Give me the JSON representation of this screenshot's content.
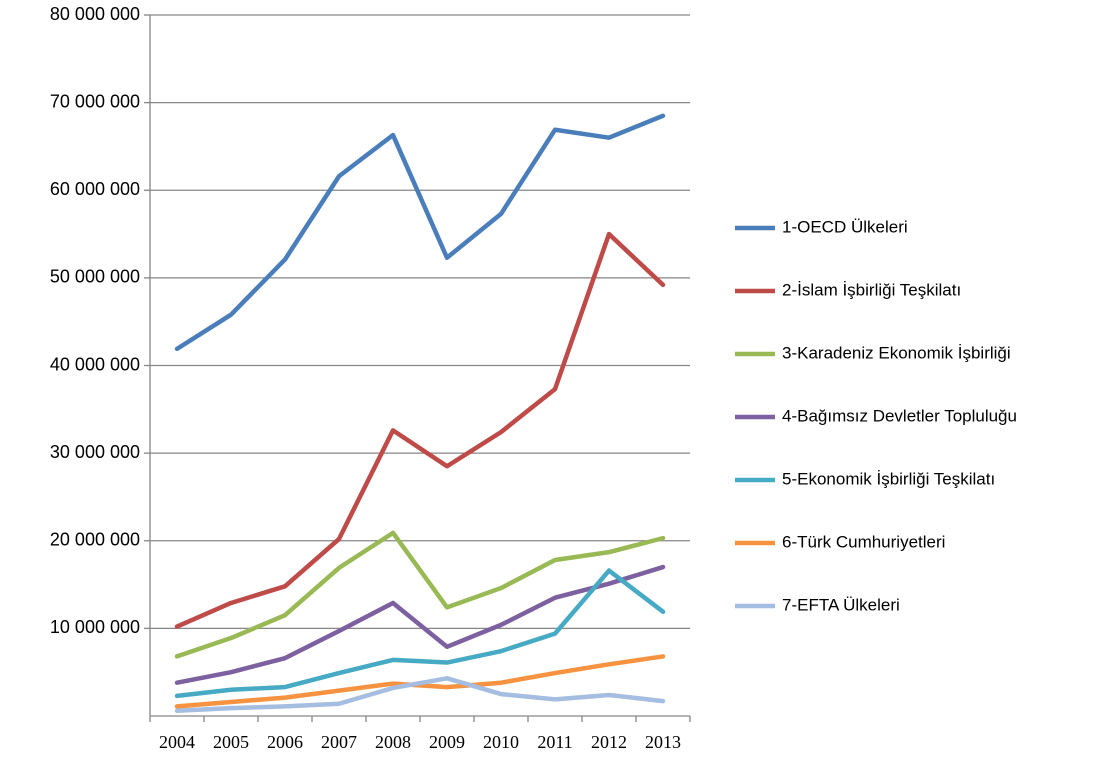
{
  "chart_data": {
    "type": "line",
    "categories": [
      "2004",
      "2005",
      "2006",
      "2007",
      "2008",
      "2009",
      "2010",
      "2011",
      "2012",
      "2013"
    ],
    "ylim": [
      0,
      80000000
    ],
    "yticks": [
      {
        "value": 10000000,
        "label": "10 000 000"
      },
      {
        "value": 20000000,
        "label": "20 000 000"
      },
      {
        "value": 30000000,
        "label": "30 000 000"
      },
      {
        "value": 40000000,
        "label": "40 000 000"
      },
      {
        "value": 50000000,
        "label": "50 000 000"
      },
      {
        "value": 60000000,
        "label": "60 000 000"
      },
      {
        "value": 70000000,
        "label": "70 000 000"
      },
      {
        "value": 80000000,
        "label": "80 000 000"
      }
    ],
    "grid": true,
    "legend": "right",
    "series": [
      {
        "name": "1-OECD Ülkeleri",
        "color": "#4a7ebb",
        "values": [
          41900000,
          45800000,
          52100000,
          61600000,
          66300000,
          52300000,
          57300000,
          66900000,
          66000000,
          68500000
        ]
      },
      {
        "name": "2-İslam İşbirliği Teşkilatı",
        "color": "#be4b48",
        "values": [
          10200000,
          12900000,
          14800000,
          20200000,
          32600000,
          28500000,
          32400000,
          37300000,
          55000000,
          49200000
        ]
      },
      {
        "name": "3-Karadeniz Ekonomik  İşbirliği",
        "color": "#98b954",
        "values": [
          6800000,
          8900000,
          11500000,
          16900000,
          20900000,
          12400000,
          14600000,
          17800000,
          18700000,
          20300000
        ]
      },
      {
        "name": "4-Bağımsız Devletler Topluluğu",
        "color": "#7d60a0",
        "values": [
          3800000,
          5000000,
          6600000,
          9700000,
          12900000,
          7900000,
          10400000,
          13500000,
          15100000,
          17000000
        ]
      },
      {
        "name": "5-Ekonomik İşbirliği Teşkilatı",
        "color": "#46aac5",
        "values": [
          2300000,
          3000000,
          3300000,
          4900000,
          6400000,
          6100000,
          7400000,
          9400000,
          16600000,
          11900000
        ]
      },
      {
        "name": "6-Türk Cumhuriyetleri",
        "color": "#f69240",
        "values": [
          1100000,
          1600000,
          2100000,
          2900000,
          3700000,
          3300000,
          3800000,
          4900000,
          5900000,
          6800000
        ]
      },
      {
        "name": "7-EFTA Ülkeleri",
        "color": "#a4bde0",
        "values": [
          600000,
          900000,
          1100000,
          1400000,
          3200000,
          4300000,
          2500000,
          1900000,
          2400000,
          1700000
        ]
      }
    ]
  }
}
